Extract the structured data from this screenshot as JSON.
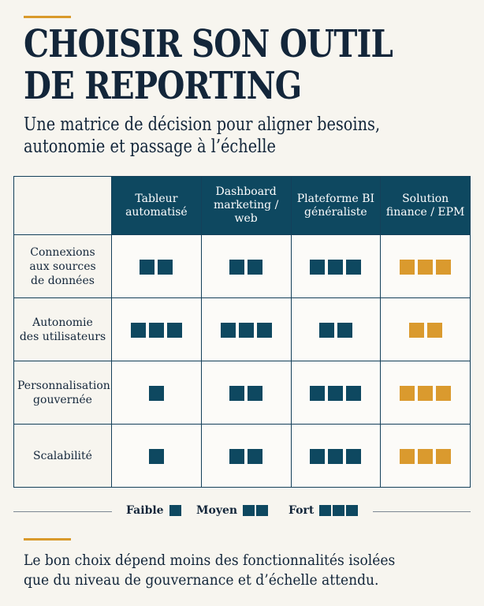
{
  "title_lines": [
    "CHOISIR SON OUTIL",
    "DE REPORTING"
  ],
  "subtitle_lines": [
    "Une matrice de décision pour aligner besoins,",
    "autonomie et passage à l’échelle"
  ],
  "colors": {
    "accent": "#d99a2b",
    "primary": "#0e4860",
    "level_blue": "#0e4860",
    "level_gold": "#da9a2e"
  },
  "matrix": {
    "columns": [
      {
        "line1": "Tableur",
        "line2": "automatisé"
      },
      {
        "line1": "Dashboard",
        "line2": "marketing / web"
      },
      {
        "line1": "Plateforme BI",
        "line2": "généraliste"
      },
      {
        "line1": "Solution",
        "line2": "finance / EPM"
      }
    ],
    "rows": [
      {
        "lines": [
          "Connexions",
          "aux sources",
          "de données"
        ],
        "levels": [
          2,
          2,
          3,
          3
        ]
      },
      {
        "lines": [
          "Autonomie",
          "des utilisateurs"
        ],
        "levels": [
          3,
          3,
          2,
          2
        ]
      },
      {
        "lines": [
          "Personnalisation",
          "gouvernée"
        ],
        "levels": [
          1,
          2,
          3,
          3
        ]
      },
      {
        "lines": [
          "Scalabilité"
        ],
        "levels": [
          1,
          2,
          3,
          3
        ]
      }
    ],
    "highlight_column_color": "gold"
  },
  "legend": [
    {
      "label": "Faible",
      "level": 1
    },
    {
      "label": "Moyen",
      "level": 2
    },
    {
      "label": "Fort",
      "level": 3
    }
  ],
  "conclusion_lines": [
    "Le bon choix dépend moins des fonctionnalités isolées",
    "que du niveau de gouvernance et d’échelle attendu."
  ]
}
